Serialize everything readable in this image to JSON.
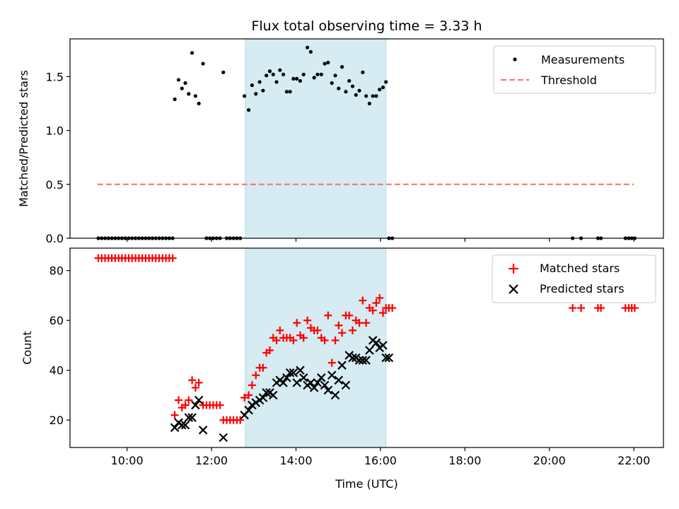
{
  "chart_data": [
    {
      "type": "scatter",
      "panel": "top",
      "title": "Flux total observing time = 3.33 h",
      "ylabel": "Matched/Predicted stars",
      "xlabel": "",
      "ylim": [
        0.0,
        1.85
      ],
      "yticks": [
        0.0,
        0.5,
        1.0,
        1.5
      ],
      "ytick_labels": [
        "0.0",
        "0.5",
        "1.0",
        "1.5"
      ],
      "xlim_hours": [
        8.65,
        22.7
      ],
      "xticks_hours": [
        10,
        12,
        14,
        16,
        18,
        20,
        22
      ],
      "legend": {
        "position": "top-right",
        "entries": [
          "Measurements",
          "Threshold"
        ]
      },
      "shaded_interval_hours": [
        12.8,
        16.13
      ],
      "threshold": {
        "name": "Threshold",
        "value": 0.5,
        "x_range_hours": [
          9.3,
          22.0
        ],
        "color": "#ff6b6b",
        "style": "dashed"
      },
      "series": [
        {
          "name": "Measurements",
          "marker": "dot",
          "color": "#000000",
          "points": [
            [
              9.32,
              0
            ],
            [
              9.4,
              0
            ],
            [
              9.48,
              0
            ],
            [
              9.56,
              0
            ],
            [
              9.64,
              0
            ],
            [
              9.72,
              0
            ],
            [
              9.8,
              0
            ],
            [
              9.88,
              0
            ],
            [
              9.96,
              0
            ],
            [
              10.04,
              0
            ],
            [
              10.12,
              0
            ],
            [
              10.2,
              0
            ],
            [
              10.28,
              0
            ],
            [
              10.36,
              0
            ],
            [
              10.44,
              0
            ],
            [
              10.52,
              0
            ],
            [
              10.6,
              0
            ],
            [
              10.68,
              0
            ],
            [
              10.76,
              0
            ],
            [
              10.84,
              0
            ],
            [
              10.92,
              0
            ],
            [
              11.0,
              0
            ],
            [
              11.08,
              0
            ],
            [
              11.13,
              1.29
            ],
            [
              11.22,
              1.47
            ],
            [
              11.3,
              1.39
            ],
            [
              11.38,
              1.44
            ],
            [
              11.46,
              1.34
            ],
            [
              11.54,
              1.72
            ],
            [
              11.62,
              1.32
            ],
            [
              11.7,
              1.25
            ],
            [
              11.8,
              1.62
            ],
            [
              11.88,
              0
            ],
            [
              11.96,
              0
            ],
            [
              12.04,
              0
            ],
            [
              12.12,
              0
            ],
            [
              12.2,
              0
            ],
            [
              12.36,
              0
            ],
            [
              12.44,
              0
            ],
            [
              12.52,
              0
            ],
            [
              12.6,
              0
            ],
            [
              12.68,
              0
            ],
            [
              12.28,
              1.54
            ],
            [
              12.78,
              1.32
            ],
            [
              12.88,
              1.19
            ],
            [
              12.96,
              1.42
            ],
            [
              13.05,
              1.34
            ],
            [
              13.14,
              1.45
            ],
            [
              13.22,
              1.37
            ],
            [
              13.3,
              1.51
            ],
            [
              13.38,
              1.55
            ],
            [
              13.46,
              1.52
            ],
            [
              13.54,
              1.45
            ],
            [
              13.62,
              1.56
            ],
            [
              13.7,
              1.52
            ],
            [
              13.78,
              1.36
            ],
            [
              13.86,
              1.36
            ],
            [
              13.94,
              1.48
            ],
            [
              14.02,
              1.48
            ],
            [
              14.1,
              1.46
            ],
            [
              14.18,
              1.52
            ],
            [
              14.27,
              1.77
            ],
            [
              14.35,
              1.73
            ],
            [
              14.43,
              1.49
            ],
            [
              14.51,
              1.52
            ],
            [
              14.6,
              1.52
            ],
            [
              14.68,
              1.62
            ],
            [
              14.76,
              1.63
            ],
            [
              14.85,
              1.44
            ],
            [
              14.93,
              1.51
            ],
            [
              15.01,
              1.39
            ],
            [
              15.09,
              1.59
            ],
            [
              15.18,
              1.36
            ],
            [
              15.26,
              1.46
            ],
            [
              15.34,
              1.41
            ],
            [
              15.42,
              1.33
            ],
            [
              15.5,
              1.37
            ],
            [
              15.58,
              1.54
            ],
            [
              15.66,
              1.32
            ],
            [
              15.74,
              1.25
            ],
            [
              15.82,
              1.32
            ],
            [
              15.9,
              1.32
            ],
            [
              15.98,
              1.38
            ],
            [
              16.06,
              1.4
            ],
            [
              16.13,
              1.45
            ],
            [
              16.2,
              0
            ],
            [
              16.28,
              0
            ],
            [
              20.55,
              0
            ],
            [
              20.75,
              0
            ],
            [
              21.15,
              0
            ],
            [
              21.22,
              0
            ],
            [
              21.8,
              0
            ],
            [
              21.88,
              0
            ],
            [
              21.95,
              0
            ],
            [
              22.02,
              0
            ]
          ]
        }
      ]
    },
    {
      "type": "scatter",
      "panel": "bottom",
      "title": "",
      "ylabel": "Count",
      "xlabel": "Time (UTC)",
      "ylim": [
        9,
        89
      ],
      "yticks": [
        20,
        40,
        60,
        80
      ],
      "ytick_labels": [
        "20",
        "40",
        "60",
        "80"
      ],
      "xlim_hours": [
        8.65,
        22.7
      ],
      "xticks_hours": [
        10,
        12,
        14,
        16,
        18,
        20,
        22
      ],
      "xtick_labels": [
        "10:00",
        "12:00",
        "14:00",
        "16:00",
        "18:00",
        "20:00",
        "22:00"
      ],
      "legend": {
        "position": "top-right",
        "entries": [
          "Matched stars",
          "Predicted stars"
        ]
      },
      "shaded_interval_hours": [
        12.8,
        16.13
      ],
      "series": [
        {
          "name": "Matched stars",
          "marker": "plus",
          "color": "#ff0000",
          "points": [
            [
              9.32,
              85
            ],
            [
              9.4,
              85
            ],
            [
              9.48,
              85
            ],
            [
              9.56,
              85
            ],
            [
              9.64,
              85
            ],
            [
              9.72,
              85
            ],
            [
              9.8,
              85
            ],
            [
              9.88,
              85
            ],
            [
              9.96,
              85
            ],
            [
              10.04,
              85
            ],
            [
              10.12,
              85
            ],
            [
              10.2,
              85
            ],
            [
              10.28,
              85
            ],
            [
              10.36,
              85
            ],
            [
              10.44,
              85
            ],
            [
              10.52,
              85
            ],
            [
              10.6,
              85
            ],
            [
              10.68,
              85
            ],
            [
              10.76,
              85
            ],
            [
              10.84,
              85
            ],
            [
              10.92,
              85
            ],
            [
              11.0,
              85
            ],
            [
              11.08,
              85
            ],
            [
              11.13,
              22
            ],
            [
              11.22,
              28
            ],
            [
              11.3,
              25
            ],
            [
              11.38,
              26
            ],
            [
              11.46,
              28
            ],
            [
              11.54,
              36
            ],
            [
              11.62,
              33
            ],
            [
              11.7,
              35
            ],
            [
              11.8,
              26
            ],
            [
              11.88,
              26
            ],
            [
              11.96,
              26
            ],
            [
              12.04,
              26
            ],
            [
              12.12,
              26
            ],
            [
              12.2,
              26
            ],
            [
              12.28,
              20
            ],
            [
              12.36,
              20
            ],
            [
              12.44,
              20
            ],
            [
              12.52,
              20
            ],
            [
              12.6,
              20
            ],
            [
              12.68,
              20
            ],
            [
              12.78,
              29
            ],
            [
              12.88,
              30
            ],
            [
              12.96,
              34
            ],
            [
              13.05,
              38
            ],
            [
              13.14,
              41
            ],
            [
              13.22,
              41
            ],
            [
              13.3,
              47
            ],
            [
              13.38,
              48
            ],
            [
              13.46,
              53
            ],
            [
              13.54,
              52
            ],
            [
              13.62,
              56
            ],
            [
              13.7,
              53
            ],
            [
              13.78,
              53
            ],
            [
              13.86,
              53
            ],
            [
              13.94,
              52
            ],
            [
              14.02,
              59
            ],
            [
              14.1,
              54
            ],
            [
              14.18,
              53
            ],
            [
              14.27,
              60
            ],
            [
              14.35,
              57
            ],
            [
              14.43,
              56
            ],
            [
              14.51,
              56
            ],
            [
              14.6,
              53
            ],
            [
              14.68,
              52
            ],
            [
              14.76,
              62
            ],
            [
              14.85,
              43
            ],
            [
              14.93,
              52
            ],
            [
              15.01,
              58
            ],
            [
              15.09,
              55
            ],
            [
              15.18,
              62
            ],
            [
              15.26,
              62
            ],
            [
              15.34,
              56
            ],
            [
              15.42,
              60
            ],
            [
              15.5,
              59
            ],
            [
              15.58,
              68
            ],
            [
              15.66,
              59
            ],
            [
              15.74,
              65
            ],
            [
              15.82,
              64
            ],
            [
              15.9,
              67
            ],
            [
              15.98,
              69
            ],
            [
              16.06,
              63
            ],
            [
              16.13,
              65
            ],
            [
              16.2,
              65
            ],
            [
              16.28,
              65
            ],
            [
              20.55,
              65
            ],
            [
              20.75,
              65
            ],
            [
              21.15,
              65
            ],
            [
              21.22,
              65
            ],
            [
              21.8,
              65
            ],
            [
              21.88,
              65
            ],
            [
              21.95,
              65
            ],
            [
              22.02,
              65
            ]
          ]
        },
        {
          "name": "Predicted stars",
          "marker": "x",
          "color": "#000000",
          "points": [
            [
              11.13,
              17
            ],
            [
              11.22,
              19
            ],
            [
              11.3,
              18
            ],
            [
              11.38,
              18
            ],
            [
              11.46,
              21
            ],
            [
              11.54,
              21
            ],
            [
              11.62,
              26
            ],
            [
              11.7,
              28
            ],
            [
              11.8,
              16
            ],
            [
              12.28,
              13
            ],
            [
              12.78,
              22
            ],
            [
              12.88,
              24
            ],
            [
              12.96,
              26
            ],
            [
              13.05,
              27
            ],
            [
              13.14,
              28
            ],
            [
              13.22,
              29
            ],
            [
              13.3,
              31
            ],
            [
              13.38,
              31
            ],
            [
              13.46,
              30
            ],
            [
              13.54,
              35
            ],
            [
              13.62,
              36
            ],
            [
              13.7,
              35
            ],
            [
              13.78,
              37
            ],
            [
              13.86,
              39
            ],
            [
              13.94,
              39
            ],
            [
              14.02,
              35
            ],
            [
              14.1,
              40
            ],
            [
              14.18,
              37
            ],
            [
              14.27,
              34
            ],
            [
              14.35,
              35
            ],
            [
              14.43,
              33
            ],
            [
              14.51,
              35
            ],
            [
              14.6,
              37
            ],
            [
              14.68,
              34
            ],
            [
              14.76,
              32
            ],
            [
              14.85,
              38
            ],
            [
              14.93,
              30
            ],
            [
              15.01,
              36
            ],
            [
              15.09,
              42
            ],
            [
              15.18,
              34
            ],
            [
              15.26,
              46
            ],
            [
              15.34,
              45
            ],
            [
              15.42,
              45
            ],
            [
              15.5,
              44
            ],
            [
              15.58,
              44
            ],
            [
              15.66,
              44
            ],
            [
              15.74,
              48
            ],
            [
              15.82,
              52
            ],
            [
              15.9,
              51
            ],
            [
              15.98,
              49
            ],
            [
              16.06,
              50
            ],
            [
              16.13,
              45
            ],
            [
              16.2,
              45
            ]
          ]
        }
      ]
    }
  ]
}
